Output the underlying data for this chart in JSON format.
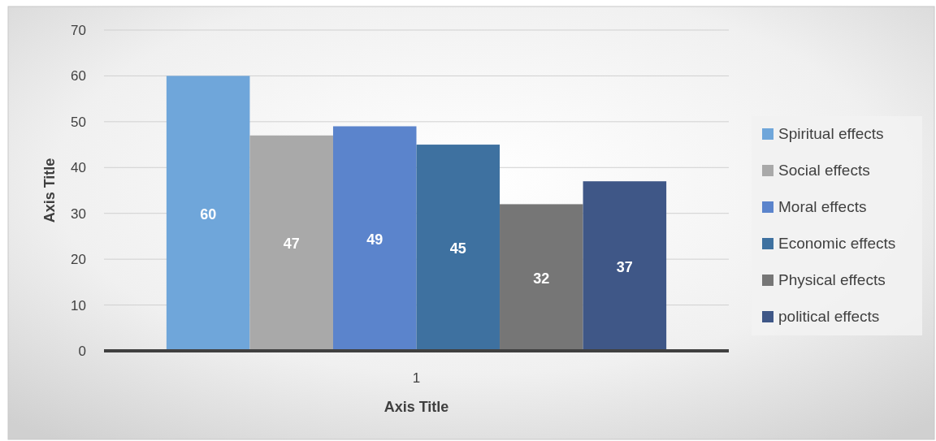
{
  "chart_data": {
    "type": "bar",
    "xlabel": "Axis Title",
    "ylabel": "Axis Title",
    "categories": [
      "1"
    ],
    "series": [
      {
        "name": "Spiritual effects",
        "color": "#6fa6da",
        "values": [
          60
        ]
      },
      {
        "name": "Social effects",
        "color": "#a9a9a9",
        "values": [
          47
        ]
      },
      {
        "name": "Moral effects",
        "color": "#5b84cc",
        "values": [
          49
        ]
      },
      {
        "name": "Economic effects",
        "color": "#3e71a0",
        "values": [
          45
        ]
      },
      {
        "name": "Physical effects",
        "color": "#767676",
        "values": [
          32
        ]
      },
      {
        "name": "political effects",
        "color": "#3f5787",
        "values": [
          37
        ]
      }
    ],
    "ylim": [
      0,
      70
    ],
    "yticks": [
      0,
      10,
      20,
      30,
      40,
      50,
      60,
      70
    ],
    "grid": "y",
    "legend": "right",
    "data_labels": true
  }
}
